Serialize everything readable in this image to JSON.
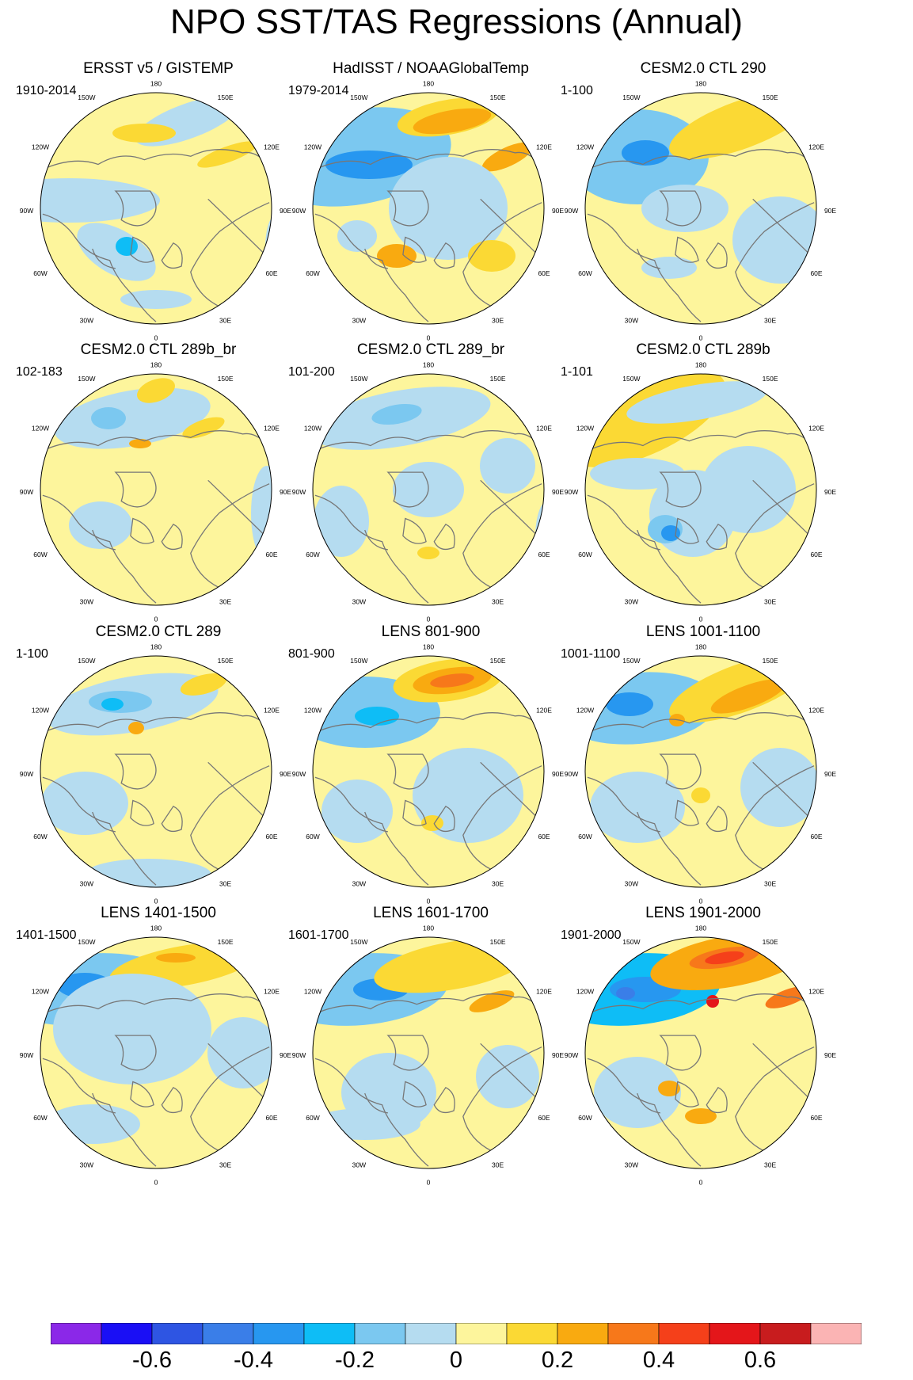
{
  "title": "NPO SST/TAS Regressions (Annual)",
  "lon_labels": {
    "top": "180",
    "bottom": "0",
    "l150": "150W",
    "l120": "120W",
    "l90": "90W",
    "l60": "60W",
    "l30": "30W",
    "r150": "150E",
    "r120": "120E",
    "r90": "90E",
    "r60": "60E",
    "r30": "30E"
  },
  "panels": [
    {
      "title": "ERSST v5 / GISTEMP",
      "years": "1910-2014"
    },
    {
      "title": "HadISST / NOAAGlobalTemp",
      "years": "1979-2014"
    },
    {
      "title": "CESM2.0 CTL 290",
      "years": "1-100"
    },
    {
      "title": "CESM2.0 CTL 289b_br",
      "years": "102-183"
    },
    {
      "title": "CESM2.0 CTL 289_br",
      "years": "101-200"
    },
    {
      "title": "CESM2.0 CTL 289b",
      "years": "1-101"
    },
    {
      "title": "CESM2.0 CTL 289",
      "years": "1-100"
    },
    {
      "title": "LENS 801-900",
      "years": "801-900"
    },
    {
      "title": "LENS 1001-1100",
      "years": "1001-1100"
    },
    {
      "title": "LENS 1401-1500",
      "years": "1401-1500"
    },
    {
      "title": "LENS 1601-1700",
      "years": "1601-1700"
    },
    {
      "title": "LENS 1901-2000",
      "years": "1901-2000"
    }
  ],
  "colorbar": {
    "colors": [
      "#8b28e8",
      "#1a0ff5",
      "#2e55e3",
      "#3a7ee8",
      "#2797f0",
      "#0ebdf6",
      "#7bc8f0",
      "#b5dcf0",
      "#fdf59c",
      "#fbd934",
      "#f9aa10",
      "#f7781a",
      "#f5401a",
      "#e4161a",
      "#c81c1e",
      "#fbb4b4"
    ],
    "tick_labels": [
      "-0.6",
      "-0.4",
      "-0.2",
      "0",
      "0.2",
      "0.4",
      "0.6"
    ]
  },
  "chart_data": {
    "type": "map",
    "projection": "north polar stereographic",
    "variable": "SST/TAS regression on NPO index",
    "colorbar_levels": [
      -0.7,
      -0.6,
      -0.5,
      -0.4,
      -0.3,
      -0.2,
      -0.1,
      0,
      0.1,
      0.2,
      0.3,
      0.4,
      0.5,
      0.6,
      0.7
    ],
    "colorbar_ticks": [
      -0.6,
      -0.4,
      -0.2,
      0,
      0.2,
      0.4,
      0.6
    ]
  }
}
